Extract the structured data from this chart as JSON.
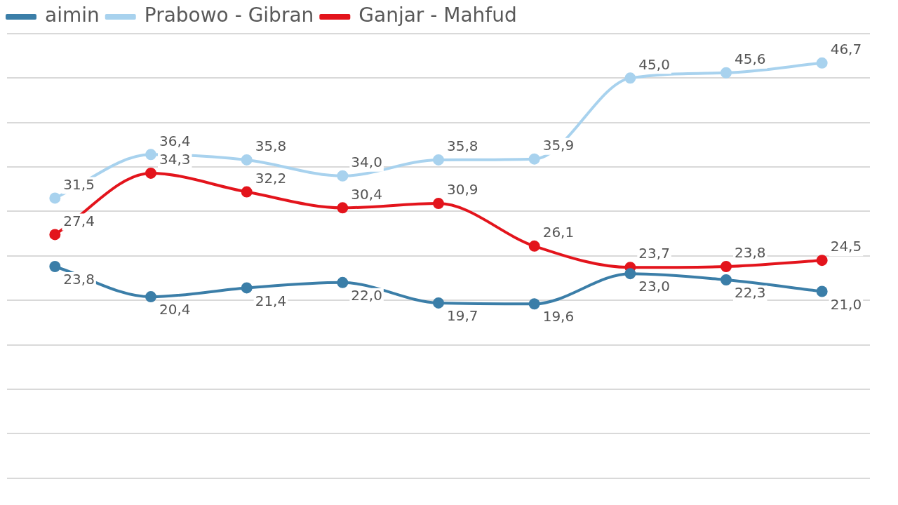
{
  "chart_data": {
    "type": "line",
    "categories": [
      null,
      null,
      null,
      null,
      null,
      null,
      null,
      null,
      null
    ],
    "series": [
      {
        "name": "aimin",
        "color": "#3b7ea8",
        "values": [
          23.8,
          20.4,
          21.4,
          22.0,
          19.7,
          19.6,
          23.0,
          22.3,
          21.0
        ],
        "value_labels": [
          "23,8",
          "20,4",
          "21,4",
          "22,0",
          "19,7",
          "19,6",
          "23,0",
          "22,3",
          "21,0"
        ]
      },
      {
        "name": "Prabowo - Gibran",
        "color": "#a8d2ee",
        "values": [
          31.5,
          36.4,
          35.8,
          34.0,
          35.8,
          35.9,
          45.0,
          45.6,
          46.7
        ],
        "value_labels": [
          "31,5",
          "36,4",
          "35,8",
          "34,0",
          "35,8",
          "35,9",
          "45,0",
          "45,6",
          "46,7"
        ]
      },
      {
        "name": "Ganjar - Mahfud",
        "color": "#e3141c",
        "values": [
          27.4,
          34.3,
          32.2,
          30.4,
          30.9,
          26.1,
          23.7,
          23.8,
          24.5
        ],
        "value_labels": [
          "27,4",
          "34,3",
          "32,2",
          "30,4",
          "30,9",
          "26,1",
          "23,7",
          "23,8",
          "24,5"
        ]
      }
    ],
    "ylim": [
      0,
      50
    ],
    "yticks": [
      {
        "value": 0,
        "label": null
      },
      {
        "value": 5,
        "label": null
      },
      {
        "value": 10,
        "label": null
      },
      {
        "value": 15,
        "label": null
      },
      {
        "value": 20,
        "label": null
      },
      {
        "value": 25,
        "label": null
      },
      {
        "value": 30,
        "label": null
      },
      {
        "value": 35,
        "label": null
      },
      {
        "value": 40,
        "label": null
      },
      {
        "value": 45,
        "label": null
      },
      {
        "value": 50,
        "label": null
      }
    ],
    "grid": "y",
    "legend": "top",
    "marker": "circle",
    "line_style": "solid"
  }
}
